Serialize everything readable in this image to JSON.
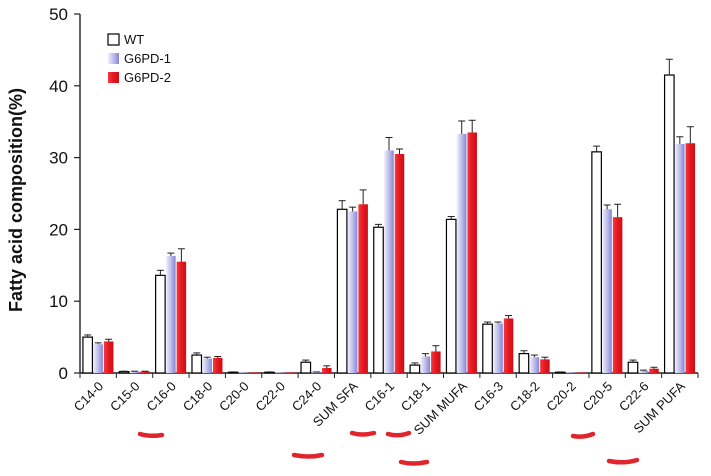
{
  "chart_data": {
    "type": "bar",
    "title": "",
    "xlabel": "",
    "ylabel": "Fatty acid composition(%)",
    "ylim": [
      0,
      50
    ],
    "yticks": [
      0,
      10,
      20,
      30,
      40,
      50
    ],
    "categories": [
      "C14-0",
      "C15-0",
      "C16-0",
      "C18-0",
      "C20-0",
      "C22-0",
      "C24-0",
      "SUM SFA",
      "C16-1",
      "C18-1",
      "SUM MUFA",
      "C16-3",
      "C18-2",
      "C20-2",
      "C20-5",
      "C22-6",
      "SUM PUFA"
    ],
    "series": [
      {
        "name": "WT",
        "color": "#ffffff",
        "values": [
          5.0,
          0.2,
          13.6,
          2.5,
          0.1,
          0.1,
          1.5,
          22.8,
          20.3,
          1.1,
          21.4,
          6.8,
          2.7,
          0.1,
          30.8,
          1.5,
          41.5
        ],
        "errors": [
          0.3,
          0.05,
          0.7,
          0.3,
          0.05,
          0.05,
          0.3,
          1.2,
          0.4,
          0.3,
          0.4,
          0.3,
          0.4,
          0.05,
          0.8,
          0.3,
          2.2
        ]
      },
      {
        "name": "G6PD-1",
        "color": "#9a9ae0",
        "values": [
          4.0,
          0.2,
          16.3,
          2.0,
          0.05,
          0.05,
          0.1,
          22.5,
          31.0,
          2.3,
          33.3,
          6.9,
          2.2,
          0.05,
          22.8,
          0.3,
          31.9
        ],
        "errors": [
          0.2,
          0.05,
          0.4,
          0.2,
          0.02,
          0.02,
          0.05,
          0.6,
          1.8,
          0.4,
          1.8,
          0.2,
          0.3,
          0.02,
          0.6,
          0.1,
          1.0
        ]
      },
      {
        "name": "G6PD-2",
        "color": "#e8161e",
        "values": [
          4.4,
          0.2,
          15.5,
          2.1,
          0.05,
          0.05,
          0.7,
          23.5,
          30.5,
          3.0,
          33.5,
          7.6,
          1.9,
          0.05,
          21.7,
          0.6,
          32.0
        ],
        "errors": [
          0.3,
          0.05,
          1.8,
          0.2,
          0.02,
          0.02,
          0.3,
          2.0,
          0.7,
          0.8,
          1.7,
          0.4,
          0.3,
          0.02,
          1.8,
          0.2,
          2.3
        ]
      }
    ],
    "legend_position": "top-left",
    "grid": false,
    "annotations": "red hand-drawn underline marks beneath C16-0, SUM SFA, C16-1, C18-1, SUM MUFA, C20-5, SUM PUFA"
  }
}
